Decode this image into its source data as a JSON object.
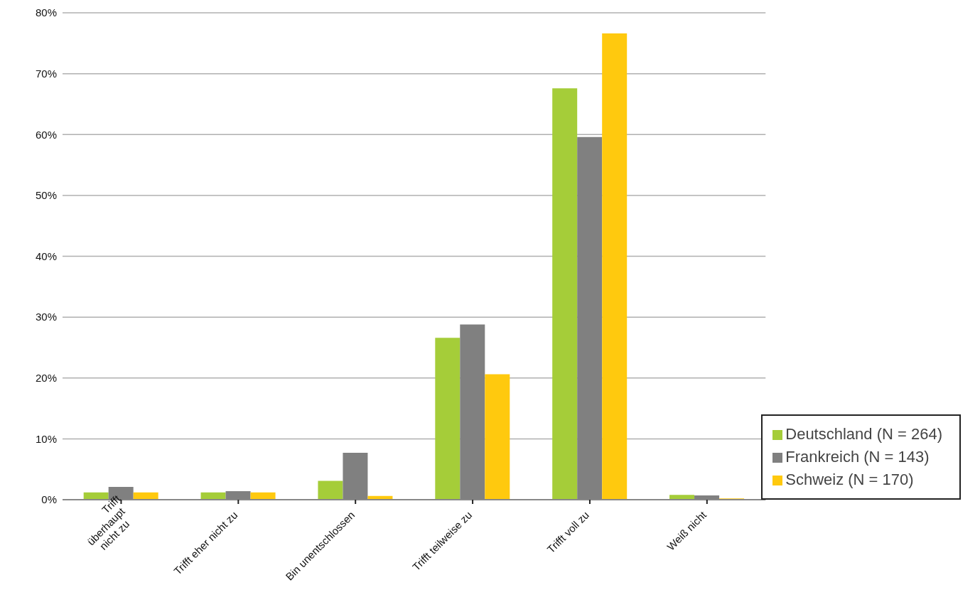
{
  "chart_data": {
    "type": "bar",
    "categories": [
      "Trifft\nüberhaupt\nnicht zu",
      "Trifft eher nicht zu",
      "Bin unentschlossen",
      "Trifft teilweise zu",
      "Trifft voll zu",
      "Weiß nicht"
    ],
    "series": [
      {
        "name": "Deutschland (N = 264)",
        "color": "#a5cd39",
        "values": [
          1.2,
          1.2,
          3.1,
          26.6,
          67.6,
          0.8
        ]
      },
      {
        "name": "Frankreich (N = 143)",
        "color": "#808080",
        "values": [
          2.1,
          1.4,
          7.7,
          28.8,
          59.6,
          0.7
        ]
      },
      {
        "name": "Schweiz (N = 170)",
        "color": "#ffc90e",
        "values": [
          1.2,
          1.2,
          0.6,
          20.6,
          76.6,
          0.2
        ]
      }
    ],
    "ylim": [
      0,
      80
    ],
    "yticks": [
      {
        "value": 0,
        "label": "0%"
      },
      {
        "value": 10,
        "label": "10%"
      },
      {
        "value": 20,
        "label": "20%"
      },
      {
        "value": 30,
        "label": "30%"
      },
      {
        "value": 40,
        "label": "40%"
      },
      {
        "value": 50,
        "label": "50%"
      },
      {
        "value": 60,
        "label": "60%"
      },
      {
        "value": 70,
        "label": "70%"
      },
      {
        "value": 80,
        "label": "80%"
      }
    ],
    "grid": "y",
    "legend": "right"
  }
}
